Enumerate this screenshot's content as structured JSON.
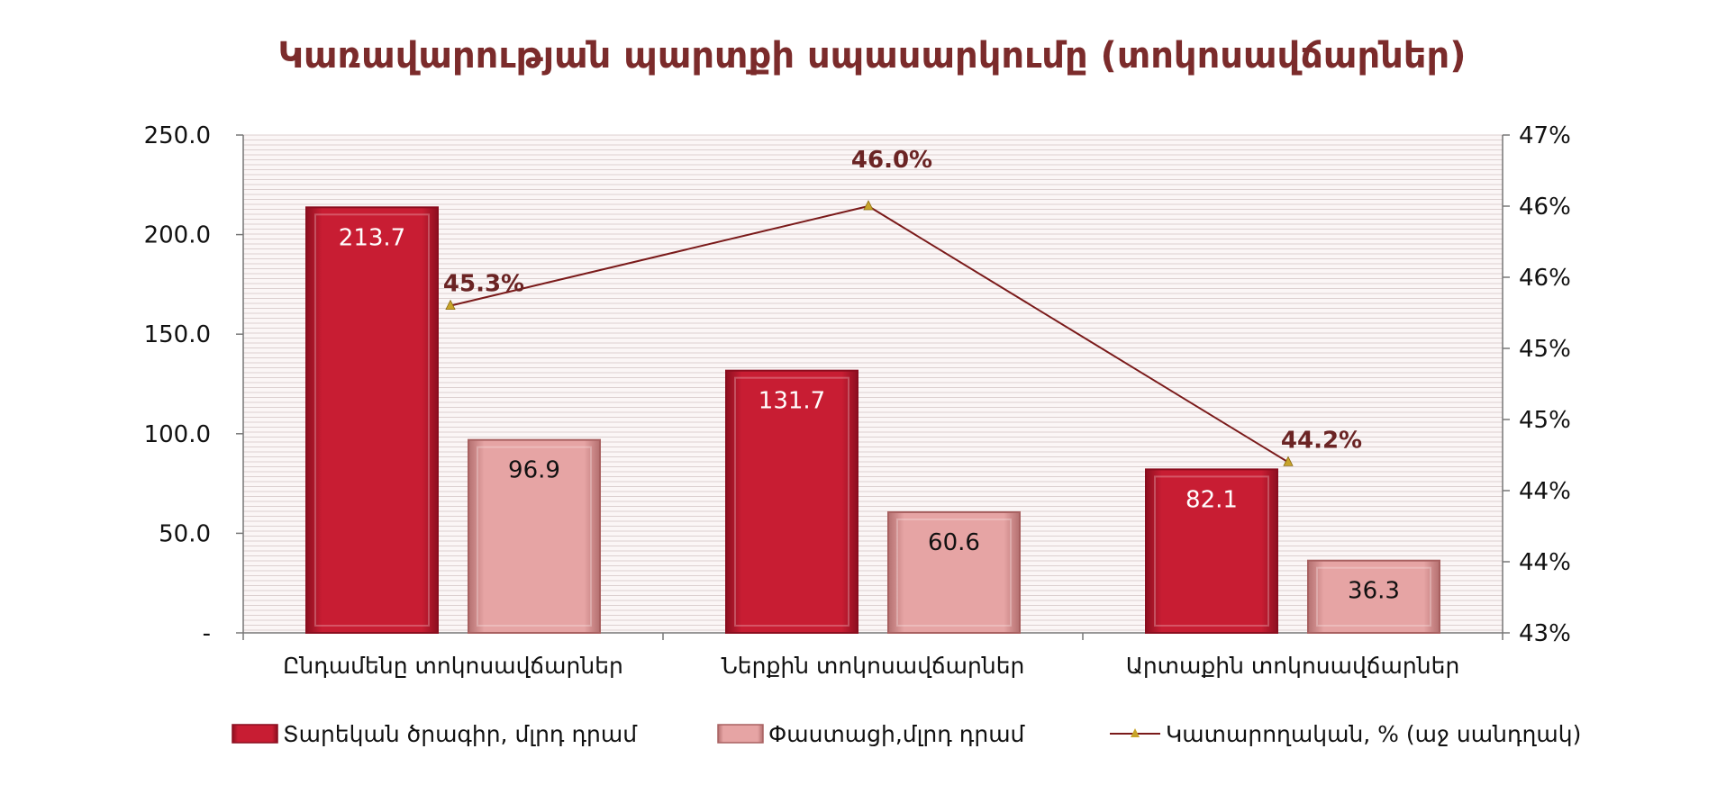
{
  "chart_data": {
    "type": "bar",
    "title": "Կառավարության պարտքի սպասարկումը (տոկոսավճարներ)",
    "categories": [
      "Ընդամենը տոկոսավճարներ",
      "Ներքին  տոկոսավճարներ",
      "Արտաքին տոկոսավճարներ"
    ],
    "series": [
      {
        "name": "Տարեկան ծրագիր, մլրդ դրամ",
        "kind": "bar",
        "axis": "left",
        "color": "#c0192f",
        "label_color": "#ffffff",
        "values": [
          213.7,
          131.7,
          82.1
        ],
        "labels": [
          "213.7",
          "131.7",
          "82.1"
        ]
      },
      {
        "name": "Փաստացի,մլրդ դրամ",
        "kind": "bar",
        "axis": "left",
        "color": "#e4a0a0",
        "label_color": "#111111",
        "values": [
          96.9,
          60.6,
          36.3
        ],
        "labels": [
          "96.9",
          "60.6",
          "36.3"
        ]
      },
      {
        "name": "Կատարողական, % (աջ սանդղակ)",
        "kind": "line",
        "axis": "right",
        "color": "#7a1a1a",
        "marker_color": "#c8a42a",
        "values": [
          45.3,
          46.0,
          44.2
        ],
        "labels": [
          "45.3%",
          "46.0%",
          "44.2%"
        ]
      }
    ],
    "left_axis": {
      "ylim": [
        0,
        250
      ],
      "ticks": [
        0,
        50,
        100,
        150,
        200,
        250
      ],
      "tick_labels": [
        "-",
        "50.0",
        "100.0",
        "150.0",
        "200.0",
        "250.0"
      ]
    },
    "right_axis": {
      "ylim": [
        43.0,
        46.5
      ],
      "ticks": [
        43.0,
        43.5,
        44.0,
        44.5,
        45.0,
        45.5,
        46.0,
        46.5
      ],
      "tick_labels": [
        "43%",
        "44%",
        "44%",
        "45%",
        "45%",
        "46%",
        "46%",
        "47%"
      ]
    },
    "grid": true,
    "legend": "bottom"
  }
}
